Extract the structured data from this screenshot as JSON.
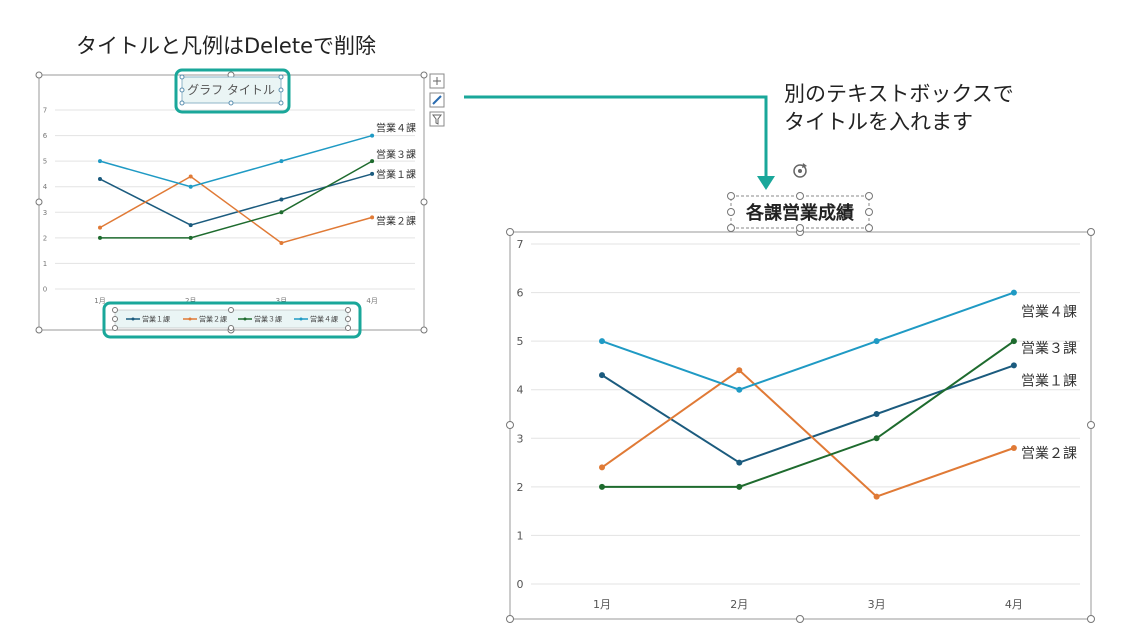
{
  "captions": {
    "left": "タイトルと凡例はDeleteで削除",
    "right": "別のテキストボックスで\nタイトルを入れます"
  },
  "small_chart": {
    "title_placeholder": "グラフ タイトル"
  },
  "big_chart": {
    "title_textbox": "各課営業成績"
  },
  "colors": {
    "accent": "#1aa79a",
    "series": [
      "#1b5b7e",
      "#e07a36",
      "#1e6b2e",
      "#1f9ac4"
    ]
  },
  "chart_data": [
    {
      "type": "line",
      "title": "グラフ タイトル",
      "categories": [
        "1月",
        "2月",
        "3月",
        "4月"
      ],
      "ylim": [
        0,
        7
      ],
      "y_ticks": [
        0,
        1,
        2,
        3,
        4,
        5,
        6,
        7
      ],
      "grid": true,
      "legend": "bottom",
      "series": [
        {
          "name": "営業１課",
          "values": [
            4.3,
            2.5,
            3.5,
            4.5
          ]
        },
        {
          "name": "営業２課",
          "values": [
            2.4,
            4.4,
            1.8,
            2.8
          ]
        },
        {
          "name": "営業３課",
          "values": [
            2,
            2,
            3,
            5
          ]
        },
        {
          "name": "営業４課",
          "values": [
            5,
            4,
            5,
            6
          ]
        }
      ]
    },
    {
      "type": "line",
      "title": "各課営業成績",
      "categories": [
        "1月",
        "2月",
        "3月",
        "4月"
      ],
      "ylim": [
        0,
        7
      ],
      "y_ticks": [
        0,
        1,
        2,
        3,
        4,
        5,
        6,
        7
      ],
      "grid": true,
      "legend": "none",
      "series": [
        {
          "name": "営業１課",
          "values": [
            4.3,
            2.5,
            3.5,
            4.5
          ]
        },
        {
          "name": "営業２課",
          "values": [
            2.4,
            4.4,
            1.8,
            2.8
          ]
        },
        {
          "name": "営業３課",
          "values": [
            2,
            2,
            3,
            5
          ]
        },
        {
          "name": "営業４課",
          "values": [
            5,
            4,
            5,
            6
          ]
        }
      ]
    }
  ]
}
